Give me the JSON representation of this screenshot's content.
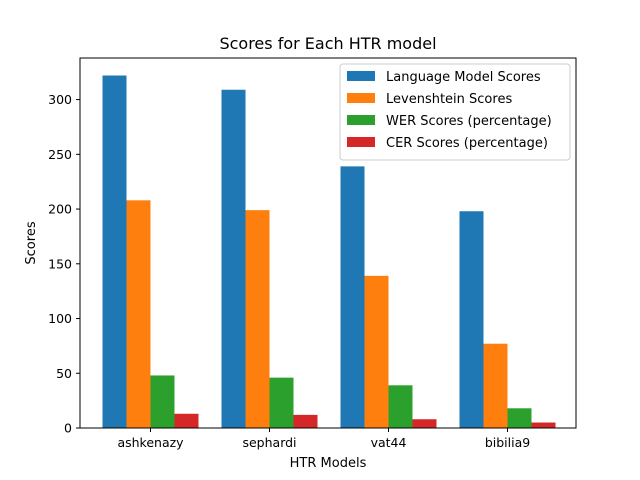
{
  "chart_data": {
    "type": "bar",
    "title": "Scores for Each HTR model",
    "xlabel": "HTR Models",
    "ylabel": "Scores",
    "categories": [
      "ashkenazy",
      "sephardi",
      "vat44",
      "bibilia9"
    ],
    "series": [
      {
        "name": "Language Model Scores",
        "color": "#1f77b4",
        "values": [
          322,
          309,
          239,
          198
        ]
      },
      {
        "name": "Levenshtein Scores",
        "color": "#ff7f0e",
        "values": [
          208,
          199,
          139,
          77
        ]
      },
      {
        "name": "WER Scores (percentage)",
        "color": "#2ca02c",
        "values": [
          48,
          46,
          39,
          18
        ]
      },
      {
        "name": "CER Scores (percentage)",
        "color": "#d62728",
        "values": [
          13,
          12,
          8,
          5
        ]
      }
    ],
    "ylim": [
      0,
      338
    ],
    "yticks": [
      0,
      50,
      100,
      150,
      200,
      250,
      300
    ],
    "grid": false,
    "legend": "top-right"
  }
}
